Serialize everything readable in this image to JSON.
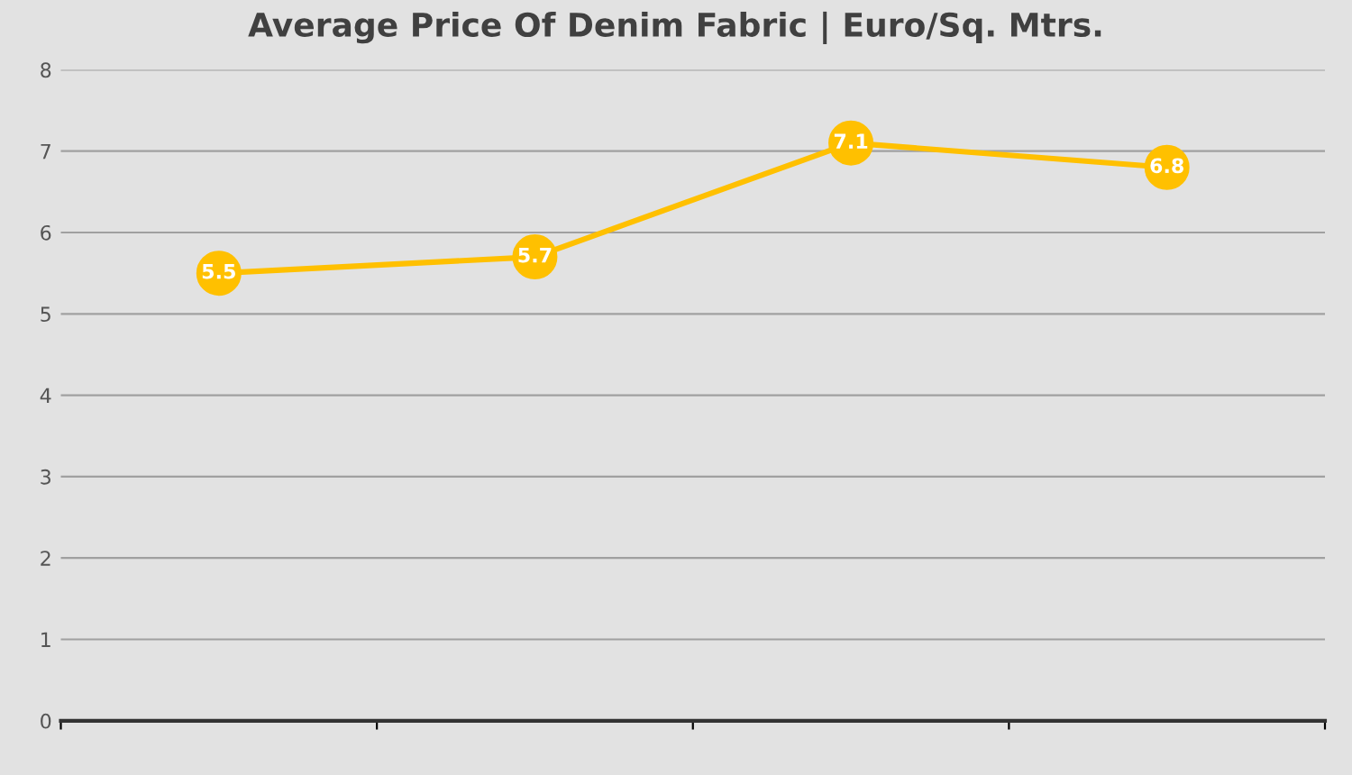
{
  "chart_data": {
    "type": "line",
    "title": "Average Price Of Denim Fabric | Euro/Sq. Mtrs.",
    "categories": [
      null,
      null,
      null,
      null
    ],
    "series": [
      {
        "color": "#ffc000",
        "values": [
          5.5,
          5.7,
          7.1,
          6.8
        ]
      }
    ],
    "ylim": [
      0,
      8
    ],
    "yticks": [
      0,
      1,
      2,
      3,
      4,
      5,
      6,
      7,
      8
    ],
    "grid": "y",
    "marker": "circle",
    "line_style": "solid",
    "data_labels": true,
    "legend": false
  }
}
